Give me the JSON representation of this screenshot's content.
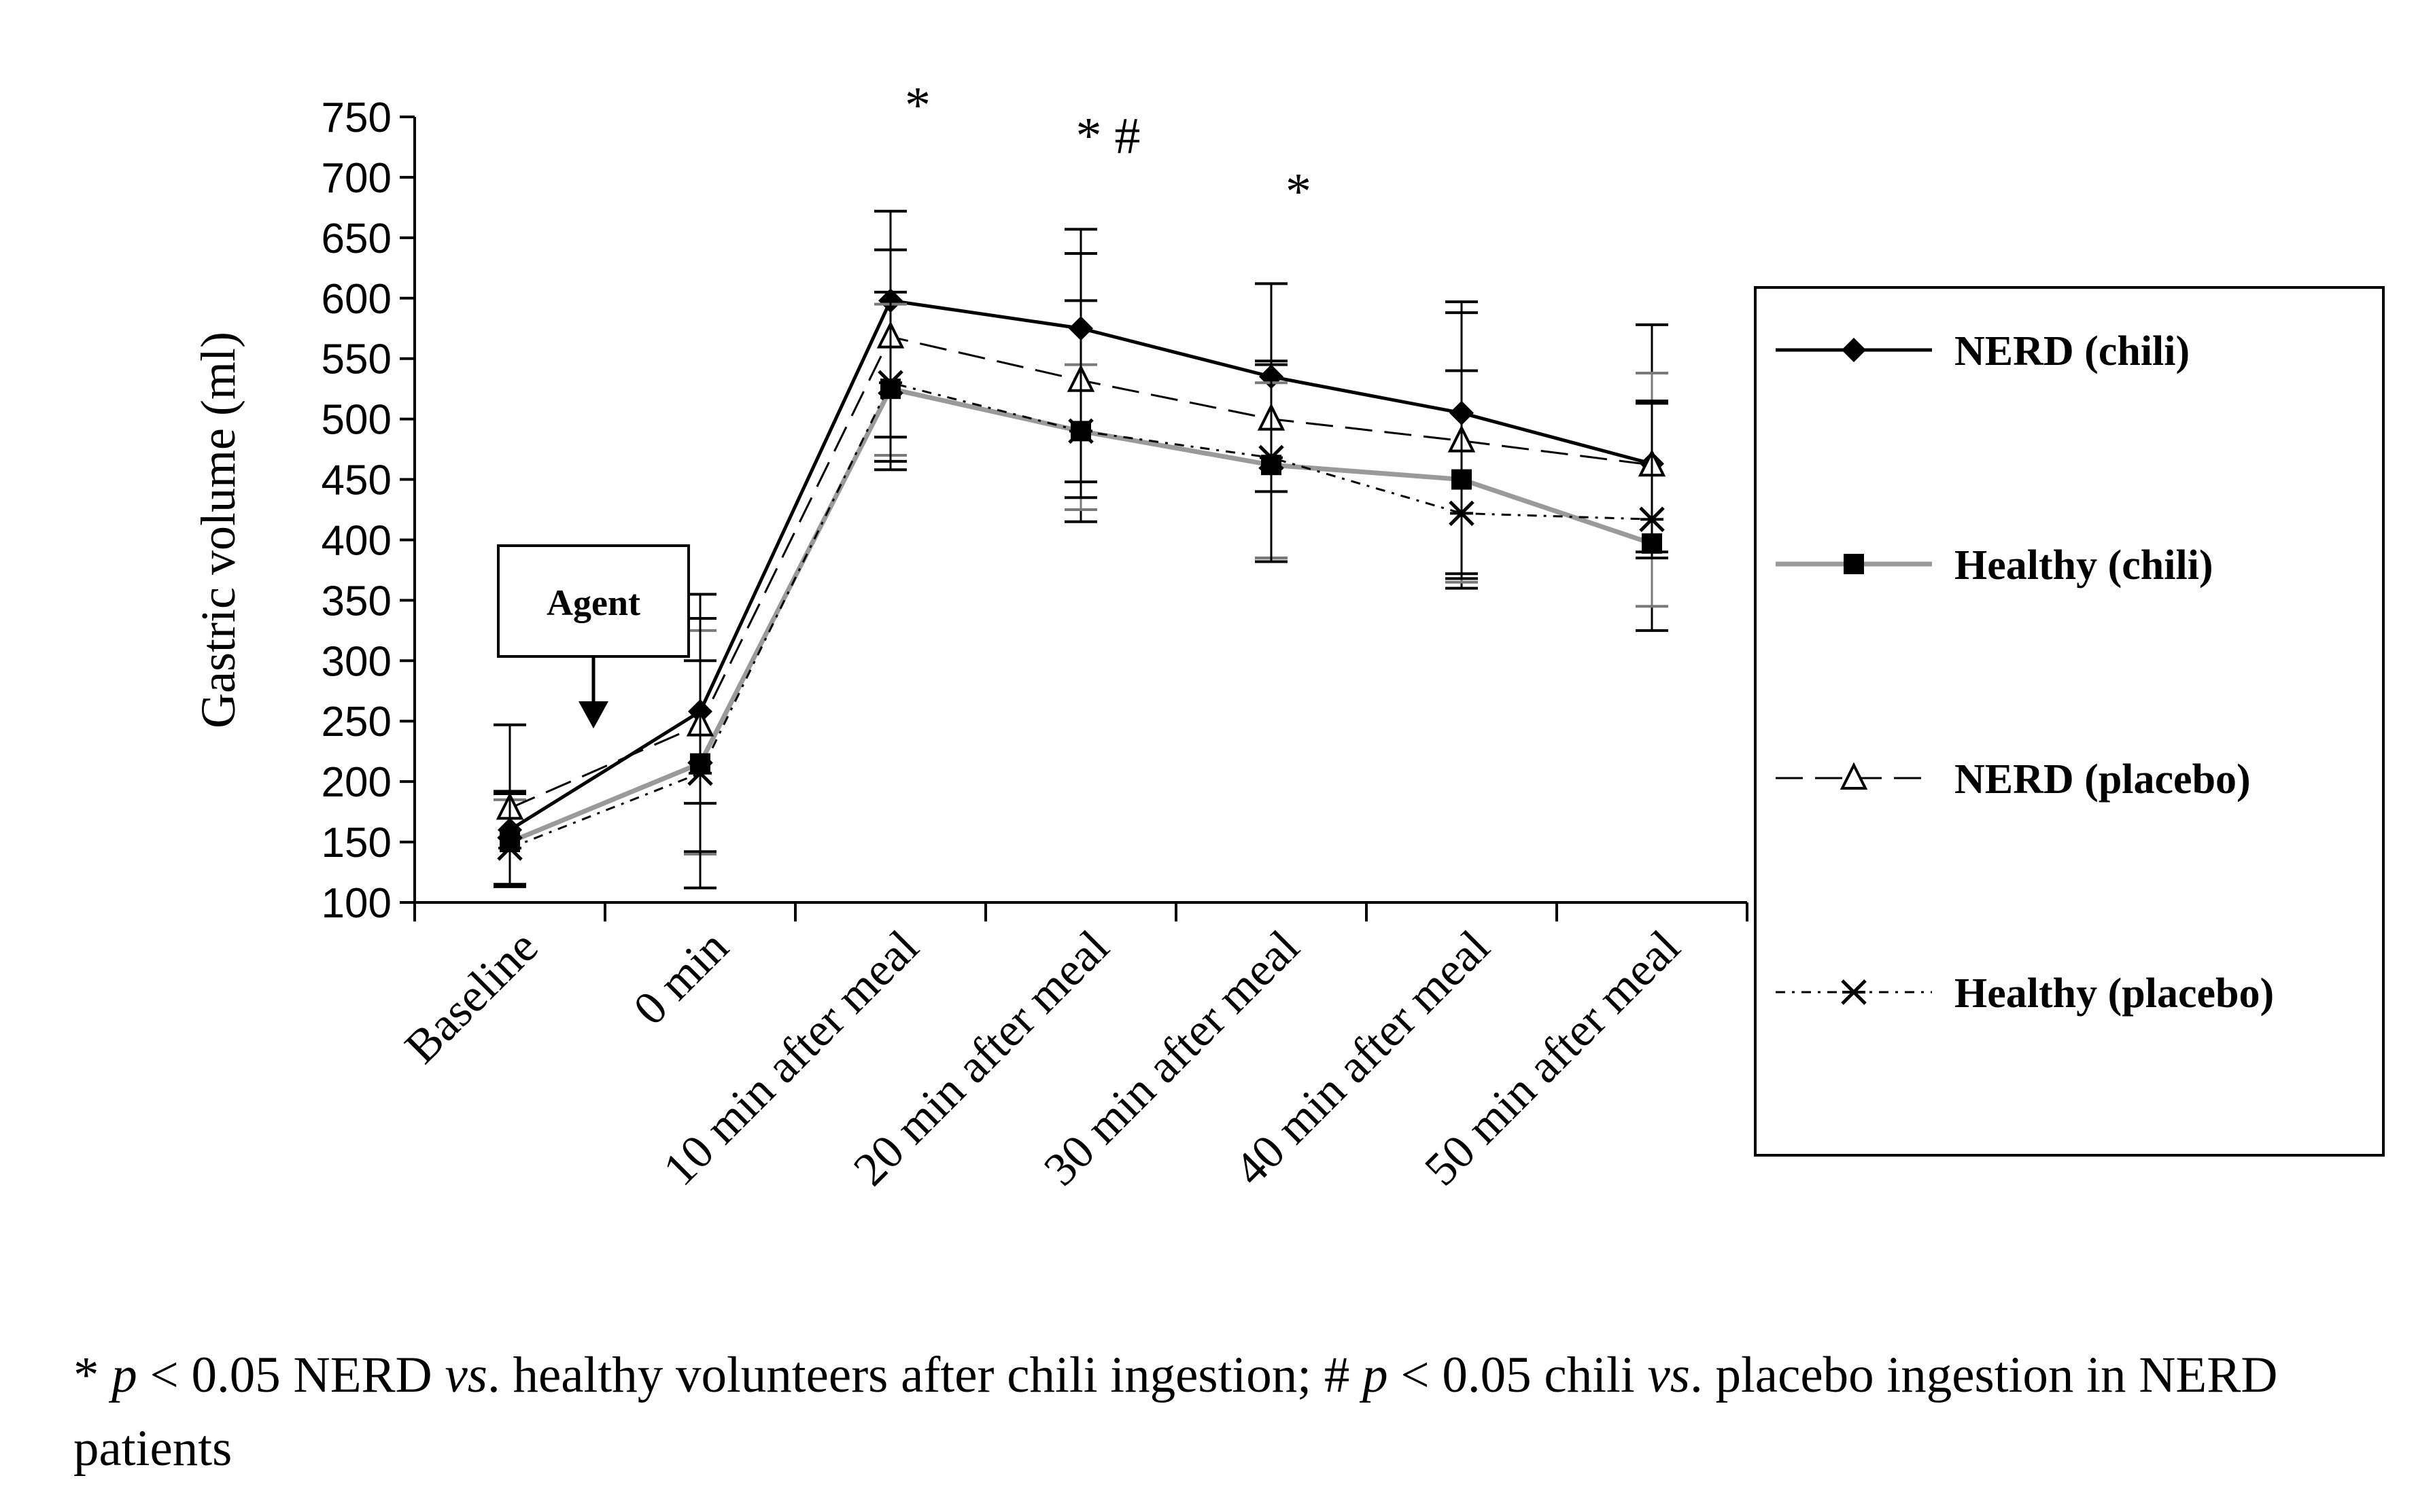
{
  "chart_data": {
    "type": "line",
    "title": "",
    "xlabel": "",
    "ylabel": "Gastric volume (ml)",
    "ylim": [
      100,
      750
    ],
    "yticks": [
      100,
      150,
      200,
      250,
      300,
      350,
      400,
      450,
      500,
      550,
      600,
      650,
      700,
      750
    ],
    "categories": [
      "Baseline",
      "0 min",
      "10 min after meal",
      "20 min after meal",
      "30 min after meal",
      "40 min after meal",
      "50 min after meal"
    ],
    "grid": false,
    "legend_position": "right",
    "series": [
      {
        "name": "NERD (chili)",
        "marker": "diamond",
        "line_style": "solid",
        "color": "#000000",
        "values": [
          160,
          258,
          598,
          575,
          535,
          505,
          463
        ],
        "error_upper": [
          247,
          355,
          672,
          657,
          612,
          597,
          578
        ],
        "error_lower": [
          113,
          142,
          465,
          415,
          385,
          360,
          325
        ]
      },
      {
        "name": "Healthy (chili)",
        "marker": "square",
        "line_style": "gray",
        "color": "#9a9a9a",
        "values": [
          150,
          215,
          525,
          490,
          462,
          450,
          397
        ],
        "error_upper": [
          185,
          325,
          595,
          545,
          530,
          540,
          538
        ],
        "error_lower": [
          115,
          140,
          470,
          425,
          385,
          365,
          345
        ]
      },
      {
        "name": "NERD (placebo)",
        "marker": "triangle",
        "line_style": "dashed",
        "color": "#000000",
        "values": [
          178,
          247,
          568,
          532,
          500,
          482,
          462
        ],
        "error_upper": [
          192,
          335,
          640,
          637,
          548,
          588,
          515
        ],
        "error_lower": [
          115,
          182,
          485,
          448,
          440,
          372,
          390
        ]
      },
      {
        "name": "Healthy (placebo)",
        "marker": "star",
        "line_style": "dash-dot",
        "color": "#000000",
        "values": [
          145,
          207,
          530,
          490,
          468,
          422,
          417
        ],
        "error_upper": [
          190,
          300,
          605,
          598,
          545,
          540,
          513
        ],
        "error_lower": [
          115,
          112,
          458,
          435,
          382,
          368,
          385
        ]
      }
    ],
    "annotations": [
      {
        "text": "*",
        "category": "10 min after meal"
      },
      {
        "text": "* #",
        "category": "20 min after meal"
      },
      {
        "text": "*",
        "category": "30 min after meal"
      }
    ],
    "agent_label": "Agent"
  },
  "footnote": {
    "p1": "* ",
    "p2": "p",
    "p3": " < 0.05 NERD ",
    "p4": "vs",
    "p5": ". healthy volunteers after chili ingestion; # ",
    "p6": "p",
    "p7": " < 0.05 chili ",
    "p8": "vs",
    "p9": ". placebo ingestion in NERD patients"
  }
}
